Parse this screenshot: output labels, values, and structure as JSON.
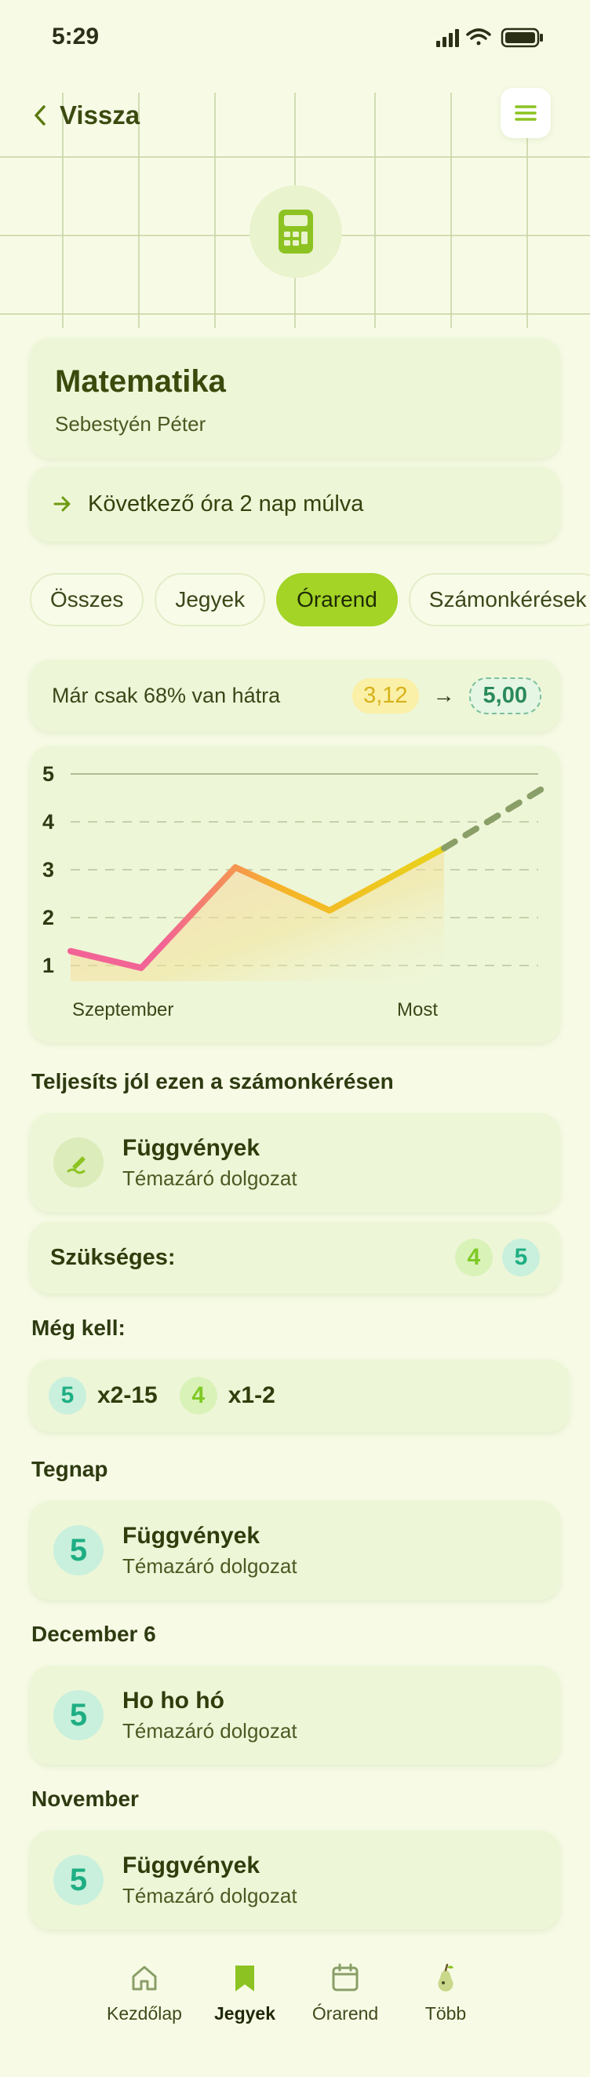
{
  "status": {
    "time": "5:29"
  },
  "header": {
    "back_label": "Vissza"
  },
  "subject": {
    "name": "Matematika",
    "teacher": "Sebestyén Péter",
    "next_lesson": "Következő óra 2 nap múlva"
  },
  "tabs": [
    {
      "label": "Összes"
    },
    {
      "label": "Jegyek"
    },
    {
      "label": "Órarend",
      "active": true
    },
    {
      "label": "Számonkérések"
    }
  ],
  "goal": {
    "text": "Már csak 68% van hátra",
    "current_avg": "3,12",
    "target_avg": "5,00"
  },
  "chart_data": {
    "type": "line",
    "y_ticks": [
      "5",
      "4",
      "3",
      "2",
      "1"
    ],
    "ylim": [
      1,
      5
    ],
    "x_labels": [
      "Szeptember",
      "Most"
    ],
    "series": [
      {
        "values": [
          1.3,
          0.95,
          3.05,
          2.15,
          3.45
        ]
      }
    ],
    "projection": [
      3.45,
      4.8
    ]
  },
  "task_section": {
    "title": "Teljesíts jól ezen a számonkérésen",
    "task_title": "Függvények",
    "task_subtitle": "Témazáró dolgozat",
    "needed_label": "Szükséges:",
    "needed_grades": [
      "4",
      "5"
    ]
  },
  "remaining": {
    "title": "Még kell:",
    "items": [
      {
        "grade": "5",
        "count": "x2-15"
      },
      {
        "grade": "4",
        "count": "x1-2"
      }
    ]
  },
  "history": [
    {
      "date": "Tegnap",
      "grade": "5",
      "title": "Függvények",
      "subtitle": "Témazáró dolgozat"
    },
    {
      "date": "December 6",
      "grade": "5",
      "title": "Ho ho hó",
      "subtitle": "Témazáró dolgozat"
    },
    {
      "date": "November",
      "grade": "5",
      "title": "Függvények",
      "subtitle": "Témazáró dolgozat"
    }
  ],
  "nav": [
    {
      "label": "Kezdőlap",
      "icon": "home-icon"
    },
    {
      "label": "Jegyek",
      "icon": "bookmark-icon",
      "active": true
    },
    {
      "label": "Órarend",
      "icon": "calendar-icon"
    },
    {
      "label": "Több",
      "icon": "pear-icon"
    }
  ],
  "colors": {
    "accent": "#a3d426",
    "background": "#f7fbe6",
    "card": "#eef6d8"
  }
}
